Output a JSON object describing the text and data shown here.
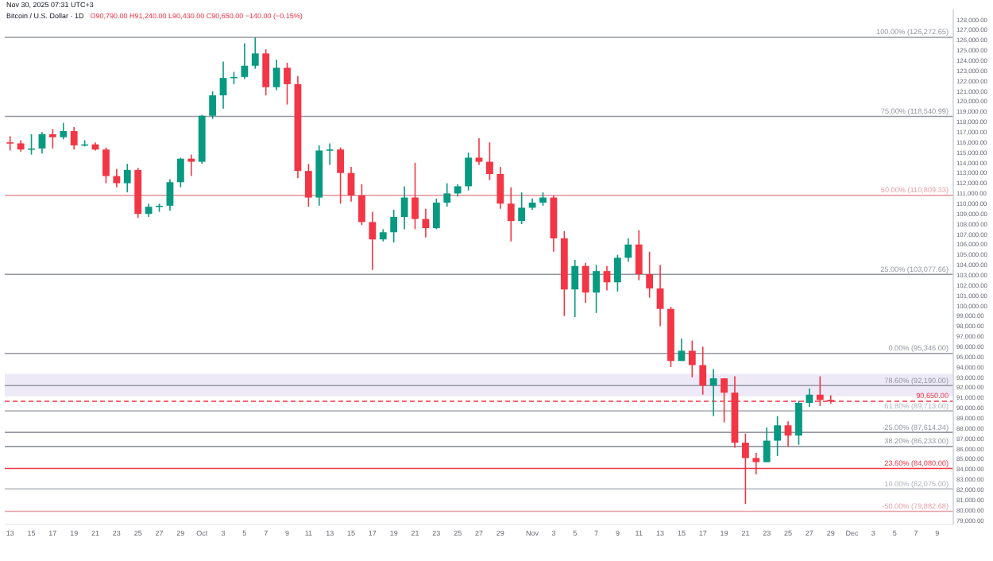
{
  "chart_data": {
    "type": "candlestick",
    "title": "Bitcoin / U.S. Dollar · 1D",
    "subtitle": "O90,790.00 H91,240.00 L90,430.00 C90,650.00 −140.00 (−0.15%)",
    "annotations": [
      "Nov 30, 2025 07:31 UTC+3"
    ],
    "x": [
      "2025-09-13",
      "2025-09-14",
      "2025-09-15",
      "2025-09-16",
      "2025-09-17",
      "2025-09-18",
      "2025-09-19",
      "2025-09-20",
      "2025-09-21",
      "2025-09-22",
      "2025-09-23",
      "2025-09-24",
      "2025-09-25",
      "2025-09-26",
      "2025-09-27",
      "2025-09-28",
      "2025-09-29",
      "2025-09-30",
      "2025-10-01",
      "2025-10-02",
      "2025-10-03",
      "2025-10-04",
      "2025-10-05",
      "2025-10-06",
      "2025-10-07",
      "2025-10-08",
      "2025-10-09",
      "2025-10-10",
      "2025-10-11",
      "2025-10-12",
      "2025-10-13",
      "2025-10-14",
      "2025-10-15",
      "2025-10-16",
      "2025-10-17",
      "2025-10-18",
      "2025-10-19",
      "2025-10-20",
      "2025-10-21",
      "2025-10-22",
      "2025-10-23",
      "2025-10-24",
      "2025-10-25",
      "2025-10-26",
      "2025-10-27",
      "2025-10-28",
      "2025-10-29",
      "2025-10-30",
      "2025-10-31",
      "2025-11-01",
      "2025-11-02",
      "2025-11-03",
      "2025-11-04",
      "2025-11-05",
      "2025-11-06",
      "2025-11-07",
      "2025-11-08",
      "2025-11-09",
      "2025-11-10",
      "2025-11-11",
      "2025-11-12",
      "2025-11-13",
      "2025-11-14",
      "2025-11-15",
      "2025-11-16",
      "2025-11-17",
      "2025-11-18",
      "2025-11-19",
      "2025-11-20",
      "2025-11-21",
      "2025-11-22",
      "2025-11-23",
      "2025-11-24",
      "2025-11-25",
      "2025-11-26",
      "2025-11-27",
      "2025-11-28",
      "2025-11-29"
    ],
    "ohlc": [
      [
        116000,
        116600,
        115200,
        115900
      ],
      [
        115900,
        116200,
        115100,
        115300
      ],
      [
        115300,
        116800,
        114800,
        115400
      ],
      [
        115400,
        117000,
        114900,
        116800
      ],
      [
        116800,
        117300,
        115400,
        116500
      ],
      [
        116500,
        117900,
        116300,
        117100
      ],
      [
        117100,
        117500,
        115300,
        115700
      ],
      [
        115700,
        116200,
        115600,
        115800
      ],
      [
        115800,
        116000,
        115200,
        115300
      ],
      [
        115300,
        115500,
        112000,
        112700
      ],
      [
        112700,
        113400,
        111600,
        112000
      ],
      [
        112000,
        113900,
        111100,
        113300
      ],
      [
        113300,
        113500,
        108600,
        109000
      ],
      [
        109000,
        110000,
        108700,
        109700
      ],
      [
        109700,
        110000,
        109200,
        109800
      ],
      [
        109800,
        112400,
        109300,
        112100
      ],
      [
        112100,
        114500,
        111600,
        114400
      ],
      [
        114400,
        114800,
        112700,
        114100
      ],
      [
        114100,
        118700,
        113900,
        118600
      ],
      [
        118600,
        121000,
        118300,
        120600
      ],
      [
        120600,
        123900,
        119300,
        122300
      ],
      [
        122300,
        122900,
        121700,
        122400
      ],
      [
        122400,
        125700,
        122200,
        123500
      ],
      [
        123500,
        126272.65,
        123200,
        124700
      ],
      [
        124700,
        125100,
        120600,
        121400
      ],
      [
        121400,
        124100,
        121100,
        123300
      ],
      [
        123300,
        123800,
        119700,
        121700
      ],
      [
        121700,
        122500,
        112500,
        113200
      ],
      [
        113200,
        113900,
        109700,
        110600
      ],
      [
        110600,
        115700,
        109800,
        115200
      ],
      [
        115200,
        115900,
        113800,
        115300
      ],
      [
        115300,
        115500,
        110000,
        113000
      ],
      [
        113000,
        113600,
        110200,
        110800
      ],
      [
        110800,
        111900,
        107900,
        108200
      ],
      [
        108200,
        109200,
        103500,
        106500
      ],
      [
        106500,
        107500,
        106300,
        107200
      ],
      [
        107200,
        109400,
        106200,
        108700
      ],
      [
        108700,
        111700,
        107500,
        110600
      ],
      [
        110600,
        114000,
        107500,
        108500
      ],
      [
        108500,
        109500,
        106700,
        107600
      ],
      [
        107600,
        110500,
        107500,
        110100
      ],
      [
        110100,
        112000,
        109700,
        111000
      ],
      [
        111000,
        111900,
        110700,
        111700
      ],
      [
        111700,
        115000,
        111300,
        114500
      ],
      [
        114500,
        116400,
        113800,
        114100
      ],
      [
        114100,
        116000,
        112300,
        112900
      ],
      [
        112900,
        113600,
        109500,
        110000
      ],
      [
        110000,
        111600,
        106300,
        108300
      ],
      [
        108300,
        111100,
        108000,
        109600
      ],
      [
        109600,
        110500,
        109400,
        110100
      ],
      [
        110100,
        111100,
        109800,
        110600
      ],
      [
        110600,
        110800,
        105300,
        106600
      ],
      [
        106600,
        107300,
        99000,
        101600
      ],
      [
        101600,
        104500,
        98900,
        103900
      ],
      [
        103900,
        104200,
        100300,
        101300
      ],
      [
        101300,
        104000,
        99300,
        103400
      ],
      [
        103400,
        103900,
        101500,
        102300
      ],
      [
        102300,
        105000,
        101400,
        104700
      ],
      [
        104700,
        106600,
        104300,
        106000
      ],
      [
        106000,
        107400,
        102500,
        103100
      ],
      [
        103100,
        105300,
        100800,
        101700
      ],
      [
        101700,
        104000,
        98000,
        99700
      ],
      [
        99700,
        99900,
        94000,
        94600
      ],
      [
        94600,
        96800,
        94600,
        95600
      ],
      [
        95600,
        96600,
        93000,
        94200
      ],
      [
        94200,
        96000,
        91300,
        92200
      ],
      [
        92200,
        93800,
        89200,
        92900
      ],
      [
        92900,
        92900,
        88600,
        91500
      ],
      [
        91500,
        93100,
        86100,
        86600
      ],
      [
        86600,
        87500,
        80600,
        85100
      ],
      [
        85100,
        85600,
        83500,
        84700
      ],
      [
        84700,
        88100,
        84700,
        86800
      ],
      [
        86800,
        89200,
        85300,
        88300
      ],
      [
        88300,
        88700,
        86200,
        87300
      ],
      [
        87300,
        90700,
        86400,
        90500
      ],
      [
        90500,
        91900,
        90100,
        91300
      ],
      [
        91300,
        93100,
        90200,
        90790
      ],
      [
        90790,
        91240,
        90430,
        90650
      ]
    ],
    "colors": [
      "#f23645",
      "#f23645",
      "#089981",
      "#089981",
      "#f23645",
      "#089981",
      "#f23645",
      "#089981",
      "#f23645",
      "#f23645",
      "#f23645",
      "#089981",
      "#f23645",
      "#089981",
      "#089981",
      "#089981",
      "#089981",
      "#f23645",
      "#089981",
      "#089981",
      "#089981",
      "#089981",
      "#089981",
      "#089981",
      "#f23645",
      "#089981",
      "#f23645",
      "#f23645",
      "#f23645",
      "#089981",
      "#089981",
      "#f23645",
      "#f23645",
      "#f23645",
      "#f23645",
      "#089981",
      "#089981",
      "#089981",
      "#f23645",
      "#f23645",
      "#089981",
      "#089981",
      "#089981",
      "#089981",
      "#f23645",
      "#f23645",
      "#f23645",
      "#f23645",
      "#089981",
      "#089981",
      "#089981",
      "#f23645",
      "#f23645",
      "#089981",
      "#f23645",
      "#089981",
      "#f23645",
      "#089981",
      "#089981",
      "#f23645",
      "#f23645",
      "#f23645",
      "#f23645",
      "#089981",
      "#f23645",
      "#f23645",
      "#089981",
      "#f23645",
      "#f23645",
      "#f23645",
      "#f23645",
      "#089981",
      "#089981",
      "#f23645",
      "#089981",
      "#089981",
      "#f23645",
      "#f23645"
    ],
    "xlim": [
      "2025-09-12T12:00",
      "2025-12-10T12:00"
    ],
    "xticks": [
      {
        "value": "2025-09-13",
        "label": "13"
      },
      {
        "value": "2025-09-15",
        "label": "15"
      },
      {
        "value": "2025-09-17",
        "label": "17"
      },
      {
        "value": "2025-09-19",
        "label": "19"
      },
      {
        "value": "2025-09-21",
        "label": "21"
      },
      {
        "value": "2025-09-23",
        "label": "23"
      },
      {
        "value": "2025-09-25",
        "label": "25"
      },
      {
        "value": "2025-09-27",
        "label": "27"
      },
      {
        "value": "2025-09-29",
        "label": "29"
      },
      {
        "value": "2025-10-01",
        "label": "Oct"
      },
      {
        "value": "2025-10-03",
        "label": "3"
      },
      {
        "value": "2025-10-05",
        "label": "5"
      },
      {
        "value": "2025-10-07",
        "label": "7"
      },
      {
        "value": "2025-10-09",
        "label": "9"
      },
      {
        "value": "2025-10-11",
        "label": "11"
      },
      {
        "value": "2025-10-13",
        "label": "13"
      },
      {
        "value": "2025-10-15",
        "label": "15"
      },
      {
        "value": "2025-10-17",
        "label": "17"
      },
      {
        "value": "2025-10-19",
        "label": "19"
      },
      {
        "value": "2025-10-21",
        "label": "21"
      },
      {
        "value": "2025-10-23",
        "label": "23"
      },
      {
        "value": "2025-10-25",
        "label": "25"
      },
      {
        "value": "2025-10-27",
        "label": "27"
      },
      {
        "value": "2025-10-29",
        "label": "29"
      },
      {
        "value": "2025-11-01",
        "label": "Nov"
      },
      {
        "value": "2025-11-03",
        "label": "3"
      },
      {
        "value": "2025-11-05",
        "label": "5"
      },
      {
        "value": "2025-11-07",
        "label": "7"
      },
      {
        "value": "2025-11-09",
        "label": "9"
      },
      {
        "value": "2025-11-11",
        "label": "11"
      },
      {
        "value": "2025-11-13",
        "label": "13"
      },
      {
        "value": "2025-11-15",
        "label": "15"
      },
      {
        "value": "2025-11-17",
        "label": "17"
      },
      {
        "value": "2025-11-19",
        "label": "19"
      },
      {
        "value": "2025-11-21",
        "label": "21"
      },
      {
        "value": "2025-11-23",
        "label": "23"
      },
      {
        "value": "2025-11-25",
        "label": "25"
      },
      {
        "value": "2025-11-27",
        "label": "27"
      },
      {
        "value": "2025-11-29",
        "label": "29"
      },
      {
        "value": "2025-12-01",
        "label": "Dec"
      },
      {
        "value": "2025-12-03",
        "label": "3"
      },
      {
        "value": "2025-12-05",
        "label": "5"
      },
      {
        "value": "2025-12-07",
        "label": "7"
      },
      {
        "value": "2025-12-09",
        "label": "9"
      }
    ],
    "ylim": [
      78600,
      129000
    ],
    "yticks": [
      {
        "value": 79000,
        "label": "79,000.00"
      },
      {
        "value": 80000,
        "label": "80,000.00"
      },
      {
        "value": 81000,
        "label": "81,000.00"
      },
      {
        "value": 82000,
        "label": "82,000.00"
      },
      {
        "value": 83000,
        "label": "83,000.00"
      },
      {
        "value": 84000,
        "label": "84,000.00"
      },
      {
        "value": 85000,
        "label": "85,000.00"
      },
      {
        "value": 86000,
        "label": "86,000.00"
      },
      {
        "value": 87000,
        "label": "87,000.00"
      },
      {
        "value": 88000,
        "label": "88,000.00"
      },
      {
        "value": 89000,
        "label": "89,000.00"
      },
      {
        "value": 90000,
        "label": "90,000.00"
      },
      {
        "value": 91000,
        "label": "91,000.00"
      },
      {
        "value": 92000,
        "label": "92,000.00"
      },
      {
        "value": 93000,
        "label": "93,000.00"
      },
      {
        "value": 94000,
        "label": "94,000.00"
      },
      {
        "value": 95000,
        "label": "95,000.00"
      },
      {
        "value": 96000,
        "label": "96,000.00"
      },
      {
        "value": 97000,
        "label": "97,000.00"
      },
      {
        "value": 98000,
        "label": "98,000.00"
      },
      {
        "value": 99000,
        "label": "99,000.00"
      },
      {
        "value": 100000,
        "label": "100,000.00"
      },
      {
        "value": 101000,
        "label": "101,000.00"
      },
      {
        "value": 102000,
        "label": "102,000.00"
      },
      {
        "value": 103000,
        "label": "103,000.00"
      },
      {
        "value": 104000,
        "label": "104,000.00"
      },
      {
        "value": 105000,
        "label": "105,000.00"
      },
      {
        "value": 106000,
        "label": "106,000.00"
      },
      {
        "value": 107000,
        "label": "107,000.00"
      },
      {
        "value": 108000,
        "label": "108,000.00"
      },
      {
        "value": 109000,
        "label": "109,000.00"
      },
      {
        "value": 110000,
        "label": "110,000.00"
      },
      {
        "value": 111000,
        "label": "111,000.00"
      },
      {
        "value": 112000,
        "label": "112,000.00"
      },
      {
        "value": 113000,
        "label": "113,000.00"
      },
      {
        "value": 114000,
        "label": "114,000.00"
      },
      {
        "value": 115000,
        "label": "115,000.00"
      },
      {
        "value": 116000,
        "label": "116,000.00"
      },
      {
        "value": 117000,
        "label": "117,000.00"
      },
      {
        "value": 118000,
        "label": "118,000.00"
      },
      {
        "value": 119000,
        "label": "119,000.00"
      },
      {
        "value": 120000,
        "label": "120,000.00"
      },
      {
        "value": 121000,
        "label": "121,000.00"
      },
      {
        "value": 122000,
        "label": "122,000.00"
      },
      {
        "value": 123000,
        "label": "123,000.00"
      },
      {
        "value": 124000,
        "label": "124,000.00"
      },
      {
        "value": 125000,
        "label": "125,000.00"
      },
      {
        "value": 126000,
        "label": "126,000.00"
      },
      {
        "value": 127000,
        "label": "127,000.00"
      },
      {
        "value": 128000,
        "label": "128,000.00"
      }
    ],
    "bands": [
      {
        "axis": "y",
        "from": 91150,
        "to": 93330,
        "color": "#ede9f7"
      }
    ],
    "ref_lines": [
      {
        "axis": "y",
        "value": 126272.65,
        "label": "100.00% (126,272.65)",
        "color": "#9598a1"
      },
      {
        "axis": "y",
        "value": 118540.99,
        "label": "75.00% (118,540.99)",
        "color": "#9598a1"
      },
      {
        "axis": "y",
        "value": 110809.33,
        "label": "50.00% (110,809.33)",
        "color": "#e8a0a6"
      },
      {
        "axis": "y",
        "value": 103077.66,
        "label": "25.00% (103,077.66)",
        "color": "#9598a1"
      },
      {
        "axis": "y",
        "value": 95346,
        "label": "0.00% (95,346.00)",
        "color": "#9598a1"
      },
      {
        "axis": "y",
        "value": 92190,
        "label": "78.60% (92,190.00)",
        "color": "#9598a1"
      },
      {
        "axis": "y",
        "value": 90650,
        "label": "90,650.00",
        "color": "#f23645",
        "line_style": "dashed"
      },
      {
        "axis": "y",
        "value": 89713,
        "label": "61.80% (89,713.00)",
        "color": "#b2b5be"
      },
      {
        "axis": "y",
        "value": 87614.34,
        "label": "-25.00% (87,614.34)",
        "color": "#9598a1"
      },
      {
        "axis": "y",
        "value": 86233,
        "label": "38.20% (86,233.00)",
        "color": "#9598a1"
      },
      {
        "axis": "y",
        "value": 84080,
        "label": "23.60% (84,080.00)",
        "color": "#f23645"
      },
      {
        "axis": "y",
        "value": 82075,
        "label": "10.00% (82,075.00)",
        "color": "#b2b5be"
      },
      {
        "axis": "y",
        "value": 79882.68,
        "label": "-50.00% (79,882.68)",
        "color": "#e8a0a6"
      }
    ]
  }
}
